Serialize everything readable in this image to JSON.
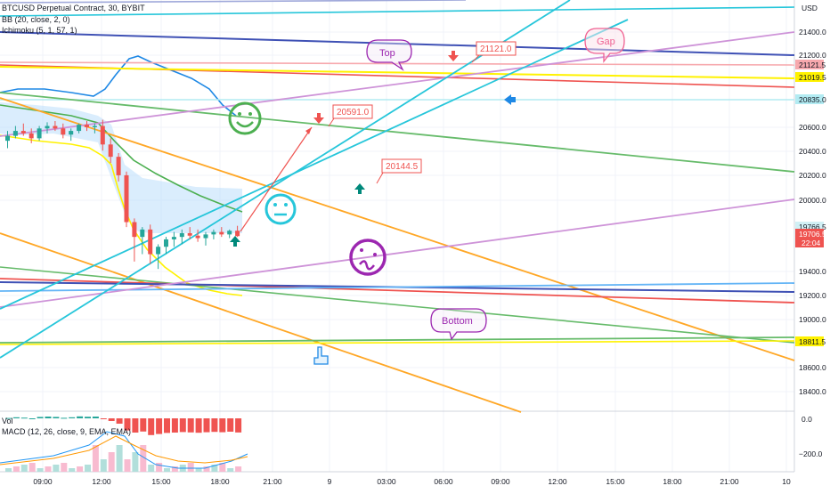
{
  "legend": {
    "symbol": "BTCUSD Perpetual Contract, 30, BYBIT",
    "bb": "BB (20, close, 2, 0)",
    "ichimoku": "Ichimoku (5, 1, 57, 1)",
    "vol": "Vol",
    "macd": "MACD (12, 26, close, 9, EMA, EMA)"
  },
  "axis": {
    "currency": "USD",
    "price_ticks": [
      "21400.0",
      "21200.0",
      "20600.0",
      "20400.0",
      "20200.0",
      "20000.0",
      "19400.0",
      "19200.0",
      "19000.0",
      "18600.0",
      "18400.0"
    ],
    "macd_ticks": [
      "0.0",
      "−200.0"
    ],
    "time_ticks": [
      "09:00",
      "12:00",
      "15:00",
      "18:00",
      "21:00",
      "9",
      "03:00",
      "06:00",
      "09:00",
      "12:00",
      "15:00",
      "18:00",
      "21:00",
      "10"
    ]
  },
  "price_badges": [
    {
      "text": "21121.5",
      "bg": "#f7a8ad",
      "fg": "#131722"
    },
    {
      "text": "21019.5",
      "bg": "#fff200",
      "fg": "#131722"
    },
    {
      "text": "20835.0",
      "bg": "#b2ebf2",
      "fg": "#131722"
    },
    {
      "text": "19766.5",
      "bg": "#d1f0f5",
      "fg": "#131722"
    },
    {
      "text": "19706.5",
      "bg": "#ef5350",
      "fg": "#ffffff"
    },
    {
      "text": "22:04",
      "bg": "#ef5350",
      "fg": "#ffffff"
    },
    {
      "text": "18811.5",
      "bg": "#fff200",
      "fg": "#131722"
    }
  ],
  "callouts": {
    "top": "Top",
    "gap": "Gap",
    "bottom": "Bottom"
  },
  "price_labels": [
    "21121.0",
    "20591.0",
    "20144.5"
  ],
  "colors": {
    "up": "#26a69a",
    "down": "#ef5350",
    "purple": "#9c27b0",
    "teal": "#26c6da",
    "orange": "#ffa726",
    "green": "#66bb6a",
    "navy": "#3f51b5",
    "red": "#ef5350",
    "yellow": "#fff200",
    "violet": "#ce93d8",
    "blue": "#1e88e5"
  },
  "icons": [
    "happy-face-icon",
    "neutral-face-icon",
    "confused-face-icon",
    "pointer-hand-icon",
    "arrow-up-icon",
    "arrow-down-icon",
    "arrow-left-icon"
  ],
  "chart_data": {
    "type": "candlestick",
    "ylim": [
      18300,
      21550
    ],
    "candles": [
      {
        "o": 20480,
        "h": 20560,
        "l": 20420,
        "c": 20520
      },
      {
        "o": 20520,
        "h": 20600,
        "l": 20500,
        "c": 20560
      },
      {
        "o": 20560,
        "h": 20620,
        "l": 20520,
        "c": 20540
      },
      {
        "o": 20540,
        "h": 20580,
        "l": 20460,
        "c": 20500
      },
      {
        "o": 20500,
        "h": 20600,
        "l": 20480,
        "c": 20580
      },
      {
        "o": 20580,
        "h": 20630,
        "l": 20540,
        "c": 20600
      },
      {
        "o": 20600,
        "h": 20640,
        "l": 20560,
        "c": 20580
      },
      {
        "o": 20580,
        "h": 20620,
        "l": 20500,
        "c": 20530
      },
      {
        "o": 20530,
        "h": 20580,
        "l": 20480,
        "c": 20560
      },
      {
        "o": 20560,
        "h": 20620,
        "l": 20540,
        "c": 20610
      },
      {
        "o": 20610,
        "h": 20640,
        "l": 20560,
        "c": 20590
      },
      {
        "o": 20590,
        "h": 20620,
        "l": 20540,
        "c": 20600
      },
      {
        "o": 20600,
        "h": 20650,
        "l": 20400,
        "c": 20450
      },
      {
        "o": 20450,
        "h": 20500,
        "l": 20300,
        "c": 20350
      },
      {
        "o": 20350,
        "h": 20380,
        "l": 20150,
        "c": 20200
      },
      {
        "o": 20200,
        "h": 20230,
        "l": 19780,
        "c": 19820
      },
      {
        "o": 19820,
        "h": 19850,
        "l": 19500,
        "c": 19700
      },
      {
        "o": 19700,
        "h": 19780,
        "l": 19560,
        "c": 19760
      },
      {
        "o": 19760,
        "h": 19800,
        "l": 19480,
        "c": 19560
      },
      {
        "o": 19560,
        "h": 19640,
        "l": 19440,
        "c": 19620
      },
      {
        "o": 19620,
        "h": 19700,
        "l": 19560,
        "c": 19680
      },
      {
        "o": 19680,
        "h": 19740,
        "l": 19620,
        "c": 19700
      },
      {
        "o": 19700,
        "h": 19760,
        "l": 19640,
        "c": 19730
      },
      {
        "o": 19730,
        "h": 19780,
        "l": 19680,
        "c": 19710
      },
      {
        "o": 19710,
        "h": 19760,
        "l": 19660,
        "c": 19690
      },
      {
        "o": 19690,
        "h": 19740,
        "l": 19630,
        "c": 19720
      },
      {
        "o": 19720,
        "h": 19760,
        "l": 19680,
        "c": 19740
      },
      {
        "o": 19740,
        "h": 19780,
        "l": 19700,
        "c": 19720
      },
      {
        "o": 19720,
        "h": 19760,
        "l": 19690,
        "c": 19750
      },
      {
        "o": 19750,
        "h": 19790,
        "l": 19700,
        "c": 19706.5
      }
    ]
  }
}
